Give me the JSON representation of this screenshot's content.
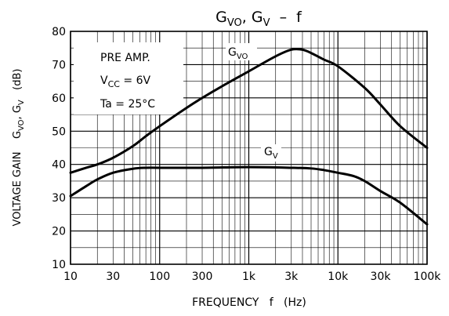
{
  "chart_data": {
    "type": "line",
    "title": {
      "main": "G",
      "sub1": "VO",
      "mid": ", G",
      "sub2": "V",
      "tail": "  –  f"
    },
    "xlabel": "FREQUENCY   f   (Hz)",
    "ylabel": {
      "pre": "VOLTAGE GAIN    G",
      "sub1": "VO",
      "mid": ", G",
      "sub2": "V",
      "tail": "   (dB)"
    },
    "x_scale": "log",
    "xlim": [
      10,
      100000
    ],
    "ylim": [
      10,
      80
    ],
    "x_ticks": [
      {
        "v": 10,
        "label": "10"
      },
      {
        "v": 30,
        "label": "30"
      },
      {
        "v": 100,
        "label": "100"
      },
      {
        "v": 300,
        "label": "300"
      },
      {
        "v": 1000,
        "label": "1k"
      },
      {
        "v": 3000,
        "label": "3k"
      },
      {
        "v": 10000,
        "label": "10k"
      },
      {
        "v": 30000,
        "label": "30k"
      },
      {
        "v": 100000,
        "label": "100k"
      }
    ],
    "y_ticks": [
      10,
      20,
      30,
      40,
      50,
      60,
      70,
      80
    ],
    "grid": true,
    "annotation": {
      "line1": "PRE AMP.",
      "line2": {
        "pre": "V",
        "sub": "CC",
        "post": " = 6V"
      },
      "line3": "Ta = 25°C"
    },
    "series": [
      {
        "name": "GVO",
        "label": {
          "main": "G",
          "sub": "VO"
        },
        "points": [
          [
            10,
            37.5
          ],
          [
            15,
            39
          ],
          [
            20,
            40
          ],
          [
            30,
            42
          ],
          [
            50,
            45.5
          ],
          [
            70,
            48.5
          ],
          [
            100,
            51.5
          ],
          [
            200,
            57
          ],
          [
            300,
            60
          ],
          [
            500,
            63.5
          ],
          [
            1000,
            68
          ],
          [
            2000,
            72.5
          ],
          [
            3000,
            74.5
          ],
          [
            4000,
            74.5
          ],
          [
            5000,
            73.5
          ],
          [
            7000,
            71.5
          ],
          [
            10000,
            69.5
          ],
          [
            20000,
            63
          ],
          [
            30000,
            58
          ],
          [
            50000,
            51.5
          ],
          [
            100000,
            45
          ]
        ]
      },
      {
        "name": "GV",
        "label": {
          "main": "G",
          "sub": "V"
        },
        "points": [
          [
            10,
            30.5
          ],
          [
            15,
            33.5
          ],
          [
            20,
            35.5
          ],
          [
            30,
            37.5
          ],
          [
            50,
            38.7
          ],
          [
            70,
            39
          ],
          [
            100,
            39
          ],
          [
            300,
            39
          ],
          [
            1000,
            39.2
          ],
          [
            3000,
            39
          ],
          [
            5000,
            38.8
          ],
          [
            7000,
            38.3
          ],
          [
            10000,
            37.5
          ],
          [
            15000,
            36.5
          ],
          [
            20000,
            35
          ],
          [
            30000,
            32
          ],
          [
            50000,
            28.5
          ],
          [
            100000,
            22
          ]
        ]
      }
    ]
  }
}
